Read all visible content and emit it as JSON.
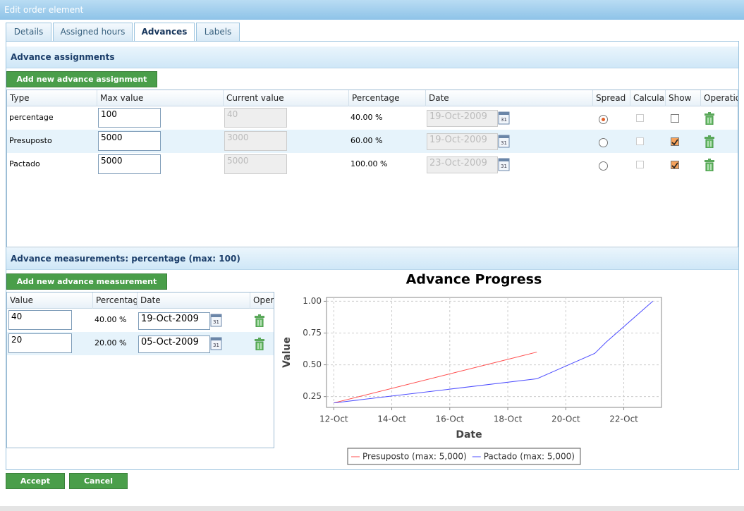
{
  "window_title": "Edit order element",
  "tabs": [
    "Details",
    "Assigned hours",
    "Advances",
    "Labels"
  ],
  "assignments": {
    "title": "Advance assignments",
    "add_button": "Add new advance assignment",
    "columns": [
      "Type",
      "Max value",
      "Current value",
      "Percentage",
      "Date",
      "Spread",
      "Calcula",
      "Show",
      "Operatio"
    ],
    "rows": [
      [
        "percentage",
        "100",
        "40",
        "40.00 %",
        "19-Oct-2009"
      ],
      [
        "Presuposto",
        "5000",
        "3000",
        "60.00 %",
        "19-Oct-2009"
      ],
      [
        "Pactado",
        "5000",
        "5000",
        "100.00 %",
        "23-Oct-2009"
      ]
    ]
  },
  "measurements": {
    "title": "Advance measurements: percentage (max: 100)",
    "add_button": "Add new advance measurement",
    "columns": [
      "Value",
      "Percentag",
      "Date",
      "Opera"
    ],
    "rows": [
      [
        "40",
        "40.00 %",
        "19-Oct-2009"
      ],
      [
        "20",
        "20.00 %",
        "05-Oct-2009"
      ]
    ]
  },
  "chart_data": {
    "type": "line",
    "title": "Advance Progress",
    "x_label": "Date",
    "y_label": "Value",
    "xlim": [
      11.75,
      23.3
    ],
    "xticks": [
      {
        "value": 12,
        "label": "12-Oct"
      },
      {
        "value": 14,
        "label": "14-Oct"
      },
      {
        "value": 16,
        "label": "16-Oct"
      },
      {
        "value": 18,
        "label": "18-Oct"
      },
      {
        "value": 20,
        "label": "20-Oct"
      },
      {
        "value": 22,
        "label": "22-Oct"
      }
    ],
    "ylim": [
      0.165,
      1.03
    ],
    "yticks": [
      0.25,
      {
        "value": 0.5,
        "label": "0.50"
      },
      0.75,
      {
        "value": 1,
        "label": "1.00"
      }
    ],
    "grid": true,
    "legend": "bottom",
    "series": [
      {
        "name": "Presuposto (max: 5,000)",
        "color": "#ff4d4d",
        "x": [
          12,
          19
        ],
        "values": [
          0.2,
          0.6
        ]
      },
      {
        "name": "Pactado (max: 5,000)",
        "color": "#4d4dff",
        "x": [
          12,
          19,
          19.5,
          20.1,
          21,
          21.4,
          23
        ],
        "values": [
          0.2,
          0.39,
          0.44,
          0.5,
          0.59,
          0.68,
          1.0
        ]
      }
    ]
  },
  "footer_buttons": [
    "Accept",
    "Cancel"
  ]
}
